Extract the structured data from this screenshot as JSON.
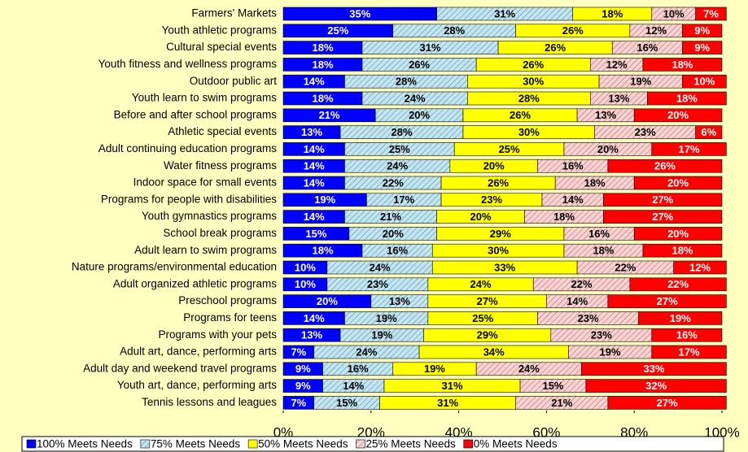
{
  "chart_data": {
    "type": "stacked_barh",
    "categories": [
      "Farmers' Markets",
      "Youth athletic programs",
      "Cultural special events",
      "Youth fitness and wellness programs",
      "Outdoor public art",
      "Youth learn to swim programs",
      "Before and after school programs",
      "Athletic special events",
      "Adult continuing education programs",
      "Water fitness programs",
      "Indoor space for small events",
      "Programs for people with disabilities",
      "Youth gymnastics programs",
      "School break programs",
      "Adult learn to swim programs",
      "Nature programs/environmental education",
      "Adult organized athletic programs",
      "Preschool programs",
      "Programs for teens",
      "Programs with your pets",
      "Adult art, dance, performing arts",
      "Adult day and weekend travel programs",
      "Youth art, dance, performing arts",
      "Tennis lessons and leagues"
    ],
    "series": [
      {
        "name": "100% Meets Needs",
        "color": "#0000ff",
        "pattern": "solid",
        "label_color": "#ffffff",
        "values": [
          35,
          25,
          18,
          18,
          14,
          18,
          21,
          13,
          14,
          14,
          14,
          19,
          14,
          15,
          18,
          10,
          10,
          20,
          14,
          13,
          7,
          9,
          9,
          7
        ],
        "value_labels": [
          "35%",
          "25%",
          "18%",
          "18%",
          "14%",
          "18%",
          "21%",
          "13%",
          "14%",
          "14%",
          "14%",
          "19%",
          "14%",
          "15%",
          "18%",
          "10%",
          "10%",
          "20%",
          "14%",
          "13%",
          "7%",
          "9%",
          "9%",
          "7%"
        ]
      },
      {
        "name": "75% Meets Needs",
        "color": "#bfe6f5",
        "pattern": "hatch",
        "label_color": "#000000",
        "values": [
          31,
          28,
          31,
          26,
          28,
          24,
          20,
          28,
          25,
          24,
          22,
          17,
          21,
          20,
          16,
          24,
          23,
          13,
          19,
          19,
          24,
          16,
          14,
          15
        ],
        "value_labels": [
          "31%",
          "28%",
          "31%",
          "26%",
          "28%",
          "24%",
          "20%",
          "28%",
          "25%",
          "24%",
          "22%",
          "17%",
          "21%",
          "20%",
          "16%",
          "24%",
          "23%",
          "13%",
          "19%",
          "19%",
          "24%",
          "16%",
          "14%",
          "15%"
        ]
      },
      {
        "name": "50% Meets Needs",
        "color": "#ffff00",
        "pattern": "solid",
        "label_color": "#000000",
        "values": [
          18,
          26,
          26,
          26,
          30,
          28,
          26,
          30,
          25,
          20,
          26,
          23,
          20,
          29,
          30,
          33,
          24,
          27,
          25,
          29,
          34,
          19,
          31,
          31
        ],
        "value_labels": [
          "18%",
          "26%",
          "26%",
          "26%",
          "30%",
          "28%",
          "26%",
          "30%",
          "25%",
          "20%",
          "26%",
          "23%",
          "20%",
          "29%",
          "30%",
          "33%",
          "24%",
          "27%",
          "25%",
          "29%",
          "34%",
          "19%",
          "31%",
          "31%"
        ]
      },
      {
        "name": "25% Meets Needs",
        "color": "#ffd0d0",
        "pattern": "hatch",
        "label_color": "#000000",
        "values": [
          10,
          12,
          16,
          12,
          19,
          13,
          13,
          23,
          20,
          16,
          18,
          14,
          18,
          16,
          18,
          22,
          22,
          14,
          23,
          23,
          19,
          24,
          15,
          21
        ],
        "value_labels": [
          "10%",
          "12%",
          "16%",
          "12%",
          "19%",
          "13%",
          "13%",
          "23%",
          "20%",
          "16%",
          "18%",
          "14%",
          "18%",
          "16%",
          "18%",
          "22%",
          "22%",
          "14%",
          "23%",
          "23%",
          "19%",
          "24%",
          "15%",
          "21%"
        ]
      },
      {
        "name": "0% Meets Needs",
        "color": "#ff0000",
        "pattern": "solid",
        "label_color": "#ffffff",
        "values": [
          7,
          9,
          9,
          18,
          10,
          18,
          20,
          6,
          17,
          26,
          20,
          27,
          27,
          20,
          18,
          12,
          22,
          27,
          19,
          16,
          17,
          33,
          32,
          27
        ],
        "value_labels": [
          "7%",
          "9%",
          "9%",
          "18%",
          "10%",
          "18%",
          "20%",
          "6%",
          "17%",
          "26%",
          "20%",
          "27%",
          "27%",
          "20%",
          "18%",
          "12%",
          "22%",
          "27%",
          "19%",
          "16%",
          "17%",
          "33%",
          "32%",
          "27%"
        ]
      }
    ],
    "xlim": [
      0,
      100
    ],
    "xticks": [
      {
        "value": 0,
        "label": "0%"
      },
      {
        "value": 20,
        "label": "20%"
      },
      {
        "value": 40,
        "label": "40%"
      },
      {
        "value": 60,
        "label": "60%"
      },
      {
        "value": 80,
        "label": "80%"
      },
      {
        "value": 100,
        "label": "100%"
      }
    ],
    "legend": "bottom"
  }
}
